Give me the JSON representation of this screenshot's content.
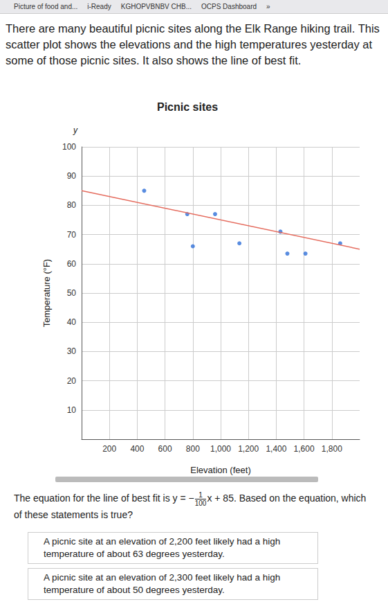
{
  "tabs": [
    "Picture of food and...",
    "i-Ready",
    "KGHOPVBNBV CHB...",
    "OCPS Dashboard",
    "»"
  ],
  "intro": "There are many beautiful picnic sites along the Elk Range hiking trail. This scatter plot shows the elevations and the high temperatures yesterday at some of those picnic sites. It also shows the line of best fit.",
  "chart_data": {
    "type": "scatter",
    "title": "Picnic sites",
    "x_label": "Elevation (feet)",
    "y_label": "Temperature (°F)",
    "y_axis_symbol": "y",
    "x": [
      450,
      760,
      960,
      800,
      1135,
      1430,
      1480,
      1610,
      1860
    ],
    "values": [
      85,
      77,
      77,
      66,
      67,
      71,
      63.5,
      63.5,
      67
    ],
    "color": "#2f6fd8",
    "marker": "circle",
    "best_fit": {
      "x": [
        0,
        2000
      ],
      "values": [
        85,
        65
      ],
      "color": "#e56b5d",
      "line_style": "solid"
    },
    "xlim": [
      0,
      2000
    ],
    "xticks": [
      200,
      400,
      600,
      800,
      {
        "value": 1000,
        "label": "1,000"
      },
      {
        "value": 1200,
        "label": "1,200"
      },
      {
        "value": 1400,
        "label": "1,400"
      },
      {
        "value": 1600,
        "label": "1,600"
      },
      {
        "value": 1800,
        "label": "1,800"
      }
    ],
    "ylim": [
      0,
      100
    ],
    "yticks": [
      10,
      20,
      30,
      40,
      50,
      60,
      70,
      80,
      90,
      100
    ],
    "grid": true
  },
  "question": {
    "before": "The equation for the line of best fit is",
    "lhs": "y = −",
    "numerator": "1",
    "denominator": "100",
    "rhs": "x + 85.",
    "after": "Based on the equation, which of these statements is true?"
  },
  "choices": [
    "A picnic site at an elevation of 2,200 feet likely had a high temperature of about 63 degrees yesterday.",
    "A picnic site at an elevation of 2,300 feet likely had a high temperature of about 50 degrees yesterday."
  ]
}
